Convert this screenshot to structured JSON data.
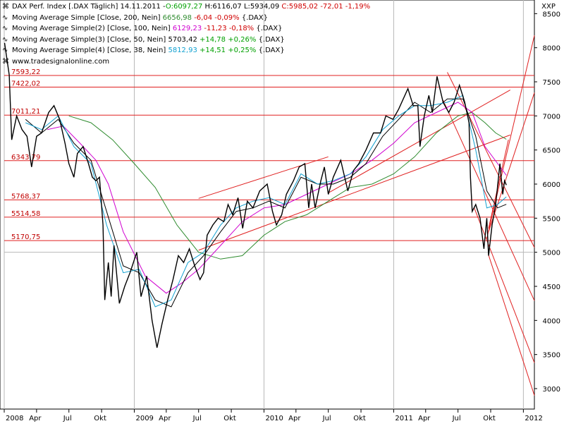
{
  "chart_data": {
    "type": "line",
    "instrument": {
      "title": "DAX Perf. Index [.DAX  Täglich] 14.11.2011 -",
      "open": "O:6097,27",
      "high": "H:6116,07",
      "low": "L:5934,09",
      "close": "C:5985,02",
      "change": "-72,01",
      "change_pct": "-1,19%"
    },
    "indicators": [
      {
        "label": "Moving Average Simple [Close, 200, Nein]",
        "value": "6656,98",
        "change": "-6,04",
        "change_pct": "-0,09%",
        "suffix": "{.DAX}",
        "color": "#2e8b2e",
        "direction": "neg"
      },
      {
        "label": "Moving Average Simple(2) [Close, 100, Nein]",
        "value": "6129,23",
        "change": "-11,23",
        "change_pct": "-0,18%",
        "suffix": "{.DAX}",
        "color": "#d000d0",
        "direction": "neg"
      },
      {
        "label": "Moving Average Simple(3) [Close, 50, Nein]",
        "value": "5703,42",
        "change": "+14,78",
        "change_pct": "+0,26%",
        "suffix": "{.DAX}",
        "color": "#000000",
        "direction": "pos"
      },
      {
        "label": "Moving Average Simple(4) [Close, 38, Nein]",
        "value": "5812,93",
        "change": "+14,51",
        "change_pct": "+0,25%",
        "suffix": "{.DAX}",
        "color": "#10a0d0",
        "direction": "pos"
      }
    ],
    "source": "www.tradesignalonline.com",
    "y_axis_title": "XXP",
    "ylim": [
      2700,
      8700
    ],
    "y_ticks": [
      3000,
      3500,
      4000,
      4500,
      5000,
      5500,
      6000,
      6500,
      7000,
      7500,
      8000,
      8500
    ],
    "x_axis": {
      "range": [
        "2008-01-01",
        "2012-02-01"
      ],
      "ticks": [
        {
          "date": "2008-01-01",
          "label": "2008",
          "year": true
        },
        {
          "date": "2008-04-01",
          "label": "Apr"
        },
        {
          "date": "2008-07-01",
          "label": "Jul"
        },
        {
          "date": "2008-10-01",
          "label": "Okt"
        },
        {
          "date": "2009-01-01",
          "label": "2009",
          "year": true
        },
        {
          "date": "2009-04-01",
          "label": "Apr"
        },
        {
          "date": "2009-07-01",
          "label": "Jul"
        },
        {
          "date": "2009-10-01",
          "label": "Okt"
        },
        {
          "date": "2010-01-01",
          "label": "2010",
          "year": true
        },
        {
          "date": "2010-04-01",
          "label": "Apr"
        },
        {
          "date": "2010-07-01",
          "label": "Jul"
        },
        {
          "date": "2010-10-01",
          "label": "Okt"
        },
        {
          "date": "2011-01-01",
          "label": "2011",
          "year": true
        },
        {
          "date": "2011-04-01",
          "label": "Apr"
        },
        {
          "date": "2011-07-01",
          "label": "Jul"
        },
        {
          "date": "2011-10-01",
          "label": "Okt"
        },
        {
          "date": "2012-01-01",
          "label": "2012",
          "year": true
        }
      ]
    },
    "grid": "vertical lines at year starts",
    "horizontal_levels": [
      {
        "value": 7593.22,
        "label": "7593,22"
      },
      {
        "value": 7422.02,
        "label": "7422,02"
      },
      {
        "value": 7011.21,
        "label": "7011,21"
      },
      {
        "value": 6343.79,
        "label": "6343,79"
      },
      {
        "value": 5768.37,
        "label": "5768,37"
      },
      {
        "value": 5514.58,
        "label": "5514,58"
      },
      {
        "value": 5170.75,
        "label": "5170,75"
      }
    ],
    "reference_level": 5000,
    "price_series": [
      [
        "2008-01-02",
        8070
      ],
      [
        "2008-01-15",
        7600
      ],
      [
        "2008-01-22",
        6650
      ],
      [
        "2008-02-05",
        7000
      ],
      [
        "2008-02-20",
        6800
      ],
      [
        "2008-03-05",
        6700
      ],
      [
        "2008-03-18",
        6250
      ],
      [
        "2008-04-01",
        6700
      ],
      [
        "2008-04-15",
        6750
      ],
      [
        "2008-05-05",
        7050
      ],
      [
        "2008-05-20",
        7150
      ],
      [
        "2008-06-05",
        6950
      ],
      [
        "2008-06-20",
        6600
      ],
      [
        "2008-07-01",
        6300
      ],
      [
        "2008-07-15",
        6100
      ],
      [
        "2008-07-25",
        6450
      ],
      [
        "2008-08-10",
        6550
      ],
      [
        "2008-08-25",
        6300
      ],
      [
        "2008-09-05",
        6100
      ],
      [
        "2008-09-15",
        6050
      ],
      [
        "2008-09-25",
        6100
      ],
      [
        "2008-10-05",
        5400
      ],
      [
        "2008-10-10",
        4300
      ],
      [
        "2008-10-20",
        4850
      ],
      [
        "2008-10-28",
        4350
      ],
      [
        "2008-11-05",
        5100
      ],
      [
        "2008-11-20",
        4250
      ],
      [
        "2008-12-05",
        4500
      ],
      [
        "2008-12-20",
        4700
      ],
      [
        "2009-01-08",
        5000
      ],
      [
        "2009-01-20",
        4350
      ],
      [
        "2009-02-05",
        4650
      ],
      [
        "2009-02-20",
        4000
      ],
      [
        "2009-03-06",
        3600
      ],
      [
        "2009-03-20",
        3950
      ],
      [
        "2009-04-05",
        4300
      ],
      [
        "2009-04-20",
        4600
      ],
      [
        "2009-05-05",
        4950
      ],
      [
        "2009-05-20",
        4850
      ],
      [
        "2009-06-05",
        5050
      ],
      [
        "2009-06-20",
        4800
      ],
      [
        "2009-07-05",
        4600
      ],
      [
        "2009-07-15",
        4700
      ],
      [
        "2009-07-25",
        5250
      ],
      [
        "2009-08-10",
        5400
      ],
      [
        "2009-08-25",
        5500
      ],
      [
        "2009-09-10",
        5450
      ],
      [
        "2009-09-22",
        5700
      ],
      [
        "2009-10-05",
        5550
      ],
      [
        "2009-10-20",
        5800
      ],
      [
        "2009-11-02",
        5350
      ],
      [
        "2009-11-15",
        5750
      ],
      [
        "2009-12-01",
        5650
      ],
      [
        "2009-12-20",
        5900
      ],
      [
        "2010-01-10",
        6000
      ],
      [
        "2010-01-25",
        5600
      ],
      [
        "2010-02-05",
        5400
      ],
      [
        "2010-02-20",
        5550
      ],
      [
        "2010-03-05",
        5850
      ],
      [
        "2010-03-25",
        6050
      ],
      [
        "2010-04-10",
        6250
      ],
      [
        "2010-04-26",
        6300
      ],
      [
        "2010-05-07",
        5650
      ],
      [
        "2010-05-15",
        6000
      ],
      [
        "2010-05-25",
        5650
      ],
      [
        "2010-06-10",
        6050
      ],
      [
        "2010-06-20",
        6250
      ],
      [
        "2010-07-01",
        5850
      ],
      [
        "2010-07-15",
        6100
      ],
      [
        "2010-08-05",
        6350
      ],
      [
        "2010-08-25",
        5900
      ],
      [
        "2010-09-10",
        6200
      ],
      [
        "2010-09-25",
        6300
      ],
      [
        "2010-10-15",
        6500
      ],
      [
        "2010-11-05",
        6750
      ],
      [
        "2010-11-25",
        6750
      ],
      [
        "2010-12-10",
        7000
      ],
      [
        "2010-12-30",
        6950
      ],
      [
        "2011-01-15",
        7100
      ],
      [
        "2011-02-10",
        7400
      ],
      [
        "2011-02-25",
        7150
      ],
      [
        "2011-03-10",
        7150
      ],
      [
        "2011-03-16",
        6550
      ],
      [
        "2011-03-28",
        7000
      ],
      [
        "2011-04-10",
        7300
      ],
      [
        "2011-04-20",
        7050
      ],
      [
        "2011-05-03",
        7580
      ],
      [
        "2011-05-20",
        7200
      ],
      [
        "2011-06-05",
        7050
      ],
      [
        "2011-06-20",
        7200
      ],
      [
        "2011-07-05",
        7450
      ],
      [
        "2011-07-20",
        7200
      ],
      [
        "2011-08-01",
        6900
      ],
      [
        "2011-08-05",
        6100
      ],
      [
        "2011-08-10",
        5600
      ],
      [
        "2011-08-20",
        5700
      ],
      [
        "2011-09-01",
        5500
      ],
      [
        "2011-09-12",
        5050
      ],
      [
        "2011-09-20",
        5500
      ],
      [
        "2011-09-25",
        4950
      ],
      [
        "2011-10-05",
        5400
      ],
      [
        "2011-10-15",
        5700
      ],
      [
        "2011-10-27",
        6300
      ],
      [
        "2011-11-04",
        5850
      ],
      [
        "2011-11-09",
        6050
      ],
      [
        "2011-11-14",
        5985
      ]
    ],
    "ma_series": [
      {
        "name": "Moving Average Simple [Close, 200, Nein]",
        "color": "#2e8b2e",
        "points": [
          [
            "2008-07-01",
            7000
          ],
          [
            "2008-09-01",
            6900
          ],
          [
            "2008-11-01",
            6650
          ],
          [
            "2009-01-01",
            6300
          ],
          [
            "2009-03-01",
            5950
          ],
          [
            "2009-05-01",
            5400
          ],
          [
            "2009-07-01",
            5000
          ],
          [
            "2009-09-01",
            4900
          ],
          [
            "2009-11-01",
            4950
          ],
          [
            "2010-01-01",
            5250
          ],
          [
            "2010-03-01",
            5450
          ],
          [
            "2010-05-01",
            5550
          ],
          [
            "2010-07-01",
            5750
          ],
          [
            "2010-09-01",
            5950
          ],
          [
            "2010-11-01",
            6000
          ],
          [
            "2011-01-01",
            6150
          ],
          [
            "2011-03-01",
            6400
          ],
          [
            "2011-05-01",
            6750
          ],
          [
            "2011-07-01",
            7000
          ],
          [
            "2011-08-10",
            7050
          ],
          [
            "2011-09-15",
            6900
          ],
          [
            "2011-10-15",
            6750
          ],
          [
            "2011-11-14",
            6657
          ]
        ]
      },
      {
        "name": "Moving Average Simple(2) [Close, 100, Nein]",
        "color": "#d000d0",
        "points": [
          [
            "2008-05-01",
            6800
          ],
          [
            "2008-06-15",
            6850
          ],
          [
            "2008-08-01",
            6600
          ],
          [
            "2008-09-15",
            6350
          ],
          [
            "2008-10-20",
            6000
          ],
          [
            "2008-12-01",
            5300
          ],
          [
            "2009-02-01",
            4650
          ],
          [
            "2009-04-01",
            4400
          ],
          [
            "2009-05-15",
            4550
          ],
          [
            "2009-07-01",
            4750
          ],
          [
            "2009-09-01",
            5100
          ],
          [
            "2009-11-01",
            5450
          ],
          [
            "2010-01-01",
            5650
          ],
          [
            "2010-03-01",
            5700
          ],
          [
            "2010-05-01",
            5850
          ],
          [
            "2010-07-01",
            6000
          ],
          [
            "2010-09-01",
            6150
          ],
          [
            "2010-11-01",
            6350
          ],
          [
            "2011-01-01",
            6600
          ],
          [
            "2011-03-01",
            6900
          ],
          [
            "2011-05-01",
            7050
          ],
          [
            "2011-07-01",
            7200
          ],
          [
            "2011-08-10",
            7050
          ],
          [
            "2011-09-15",
            6550
          ],
          [
            "2011-11-14",
            6129
          ]
        ]
      },
      {
        "name": "Moving Average Simple(3) [Close, 50, Nein]",
        "color": "#000000",
        "points": [
          [
            "2008-03-01",
            6950
          ],
          [
            "2008-04-15",
            6750
          ],
          [
            "2008-06-01",
            6950
          ],
          [
            "2008-07-15",
            6600
          ],
          [
            "2008-09-01",
            6350
          ],
          [
            "2008-10-15",
            5600
          ],
          [
            "2008-12-01",
            4800
          ],
          [
            "2009-01-15",
            4700
          ],
          [
            "2009-03-01",
            4300
          ],
          [
            "2009-04-15",
            4200
          ],
          [
            "2009-06-01",
            4700
          ],
          [
            "2009-07-15",
            4950
          ],
          [
            "2009-09-01",
            5300
          ],
          [
            "2009-10-15",
            5600
          ],
          [
            "2009-12-01",
            5650
          ],
          [
            "2010-01-15",
            5750
          ],
          [
            "2010-03-01",
            5650
          ],
          [
            "2010-04-15",
            6100
          ],
          [
            "2010-06-01",
            6000
          ],
          [
            "2010-07-15",
            6000
          ],
          [
            "2010-09-01",
            6100
          ],
          [
            "2010-10-15",
            6300
          ],
          [
            "2010-12-01",
            6700
          ],
          [
            "2011-01-15",
            6950
          ],
          [
            "2011-03-01",
            7200
          ],
          [
            "2011-04-15",
            7050
          ],
          [
            "2011-06-01",
            7250
          ],
          [
            "2011-07-15",
            7250
          ],
          [
            "2011-08-20",
            6700
          ],
          [
            "2011-09-20",
            5900
          ],
          [
            "2011-10-20",
            5650
          ],
          [
            "2011-11-14",
            5703
          ]
        ]
      },
      {
        "name": "Moving Average Simple(4) [Close, 38, Nein]",
        "color": "#10a0d0",
        "points": [
          [
            "2008-03-01",
            6900
          ],
          [
            "2008-04-15",
            6800
          ],
          [
            "2008-06-01",
            7000
          ],
          [
            "2008-07-15",
            6550
          ],
          [
            "2008-09-01",
            6300
          ],
          [
            "2008-10-15",
            5400
          ],
          [
            "2008-12-01",
            4700
          ],
          [
            "2009-01-15",
            4750
          ],
          [
            "2009-03-01",
            4200
          ],
          [
            "2009-04-15",
            4300
          ],
          [
            "2009-06-01",
            4850
          ],
          [
            "2009-07-15",
            5000
          ],
          [
            "2009-09-01",
            5400
          ],
          [
            "2009-10-15",
            5650
          ],
          [
            "2009-12-01",
            5750
          ],
          [
            "2010-01-15",
            5800
          ],
          [
            "2010-03-01",
            5700
          ],
          [
            "2010-04-15",
            6150
          ],
          [
            "2010-06-01",
            6000
          ],
          [
            "2010-07-15",
            6050
          ],
          [
            "2010-09-01",
            6150
          ],
          [
            "2010-10-15",
            6400
          ],
          [
            "2010-12-01",
            6800
          ],
          [
            "2011-01-15",
            7000
          ],
          [
            "2011-03-01",
            7150
          ],
          [
            "2011-04-15",
            7150
          ],
          [
            "2011-06-01",
            7200
          ],
          [
            "2011-07-15",
            7300
          ],
          [
            "2011-08-20",
            6500
          ],
          [
            "2011-09-20",
            5650
          ],
          [
            "2011-10-20",
            5700
          ],
          [
            "2011-11-14",
            5813
          ]
        ]
      }
    ],
    "trend_lines": [
      {
        "from": [
          "2009-07-01",
          5790
        ],
        "to": [
          "2010-07-01",
          6400
        ],
        "color": "#e02020"
      },
      {
        "from": [
          "2009-07-01",
          5030
        ],
        "to": [
          "2011-11-25",
          6720
        ],
        "color": "#e02020"
      },
      {
        "from": [
          "2010-07-01",
          5870
        ],
        "to": [
          "2011-11-25",
          7380
        ],
        "color": "#e02020"
      },
      {
        "from": [
          "2011-06-01",
          7640
        ],
        "to": [
          "2012-02-01",
          5070
        ],
        "color": "#e02020"
      },
      {
        "from": [
          "2011-05-20",
          7230
        ],
        "to": [
          "2012-02-01",
          4290
        ],
        "color": "#e02020"
      },
      {
        "from": [
          "2011-08-15",
          5660
        ],
        "to": [
          "2012-02-01",
          3380
        ],
        "color": "#e02020"
      },
      {
        "from": [
          "2011-09-25",
          4960
        ],
        "to": [
          "2012-02-01",
          2900
        ],
        "color": "#e02020"
      },
      {
        "from": [
          "2011-09-20",
          5200
        ],
        "to": [
          "2012-02-01",
          8180
        ],
        "color": "#e02020"
      },
      {
        "from": [
          "2011-09-25",
          5300
        ],
        "to": [
          "2012-02-01",
          7340
        ],
        "color": "#e02020"
      },
      {
        "from": [
          "2011-09-25",
          5350
        ],
        "to": [
          "2011-11-20",
          6650
        ],
        "color": "#e02020"
      }
    ]
  }
}
